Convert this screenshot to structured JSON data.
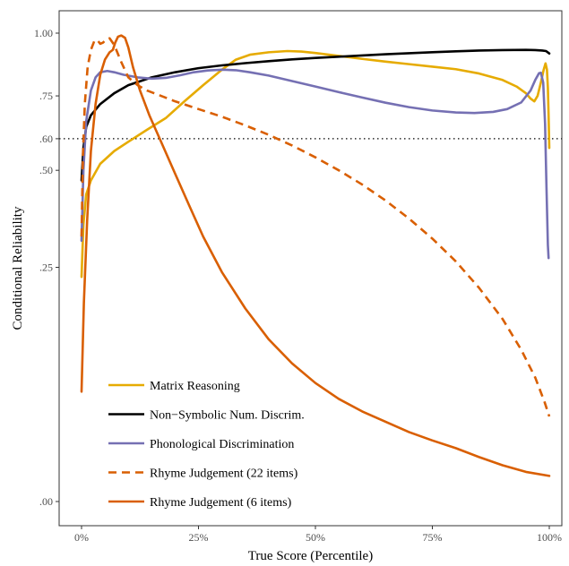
{
  "chart_data": {
    "type": "line",
    "xlabel": "True Score (Percentile)",
    "ylabel": "Conditional Reliability",
    "xlim": [
      0,
      100
    ],
    "ylim": [
      0,
      1
    ],
    "x_ticks": [
      {
        "value": 0,
        "label": "0%"
      },
      {
        "value": 25,
        "label": "25%"
      },
      {
        "value": 50,
        "label": "50%"
      },
      {
        "value": 75,
        "label": "75%"
      },
      {
        "value": 100,
        "label": "100%"
      }
    ],
    "y_ticks": [
      {
        "value": 0,
        "label": ".00"
      },
      {
        "value": 0.25,
        "label": ".25"
      },
      {
        "value": 0.5,
        "label": ".50"
      },
      {
        "value": 0.6,
        "label": ".60"
      },
      {
        "value": 0.75,
        "label": ".75"
      },
      {
        "value": 1.0,
        "label": "1.00"
      }
    ],
    "reference_line": {
      "y": 0.6,
      "style": "dotted"
    },
    "grid": false,
    "legend_position": "bottom-left",
    "series": [
      {
        "name": "Matrix Reasoning",
        "color": "#E6AB02",
        "dash": "solid",
        "points": [
          [
            0,
            0.23
          ],
          [
            0.4,
            0.35
          ],
          [
            1,
            0.43
          ],
          [
            2,
            0.47
          ],
          [
            4,
            0.52
          ],
          [
            7,
            0.56
          ],
          [
            10,
            0.59
          ],
          [
            14,
            0.63
          ],
          [
            18,
            0.67
          ],
          [
            22,
            0.73
          ],
          [
            26,
            0.79
          ],
          [
            30,
            0.85
          ],
          [
            33,
            0.89
          ],
          [
            36,
            0.91
          ],
          [
            40,
            0.92
          ],
          [
            44,
            0.925
          ],
          [
            47,
            0.923
          ],
          [
            50,
            0.917
          ],
          [
            55,
            0.905
          ],
          [
            60,
            0.893
          ],
          [
            65,
            0.882
          ],
          [
            70,
            0.872
          ],
          [
            75,
            0.862
          ],
          [
            80,
            0.852
          ],
          [
            85,
            0.835
          ],
          [
            90,
            0.81
          ],
          [
            93,
            0.785
          ],
          [
            95,
            0.76
          ],
          [
            96,
            0.74
          ],
          [
            96.8,
            0.73
          ],
          [
            97.5,
            0.75
          ],
          [
            98.2,
            0.8
          ],
          [
            98.8,
            0.85
          ],
          [
            99.2,
            0.875
          ],
          [
            99.5,
            0.85
          ],
          [
            99.7,
            0.78
          ],
          [
            99.85,
            0.68
          ],
          [
            100,
            0.57
          ]
        ]
      },
      {
        "name": "Non−Symbolic Num. Discrim.",
        "color": "#000000",
        "dash": "solid",
        "points": [
          [
            0,
            0.47
          ],
          [
            0.4,
            0.57
          ],
          [
            1,
            0.64
          ],
          [
            2,
            0.68
          ],
          [
            4,
            0.72
          ],
          [
            7,
            0.76
          ],
          [
            10,
            0.79
          ],
          [
            15,
            0.82
          ],
          [
            20,
            0.84
          ],
          [
            25,
            0.856
          ],
          [
            30,
            0.867
          ],
          [
            35,
            0.876
          ],
          [
            40,
            0.884
          ],
          [
            45,
            0.891
          ],
          [
            50,
            0.897
          ],
          [
            55,
            0.902
          ],
          [
            60,
            0.907
          ],
          [
            65,
            0.912
          ],
          [
            70,
            0.916
          ],
          [
            75,
            0.92
          ],
          [
            80,
            0.924
          ],
          [
            85,
            0.927
          ],
          [
            90,
            0.929
          ],
          [
            95,
            0.93
          ],
          [
            97,
            0.929
          ],
          [
            98.5,
            0.927
          ],
          [
            99.3,
            0.925
          ],
          [
            100,
            0.915
          ]
        ]
      },
      {
        "name": "Phonological Discrimination",
        "color": "#7570B3",
        "dash": "solid",
        "points": [
          [
            0,
            0.31
          ],
          [
            0.4,
            0.5
          ],
          [
            1,
            0.66
          ],
          [
            2,
            0.77
          ],
          [
            3,
            0.82
          ],
          [
            4,
            0.84
          ],
          [
            5.5,
            0.845
          ],
          [
            7,
            0.84
          ],
          [
            9,
            0.83
          ],
          [
            12,
            0.82
          ],
          [
            15,
            0.815
          ],
          [
            18,
            0.818
          ],
          [
            21,
            0.828
          ],
          [
            24,
            0.84
          ],
          [
            27,
            0.847
          ],
          [
            30,
            0.85
          ],
          [
            33,
            0.848
          ],
          [
            36,
            0.84
          ],
          [
            40,
            0.827
          ],
          [
            45,
            0.806
          ],
          [
            50,
            0.785
          ],
          [
            55,
            0.764
          ],
          [
            60,
            0.744
          ],
          [
            65,
            0.725
          ],
          [
            70,
            0.709
          ],
          [
            75,
            0.697
          ],
          [
            80,
            0.69
          ],
          [
            84,
            0.688
          ],
          [
            88,
            0.692
          ],
          [
            91,
            0.702
          ],
          [
            94,
            0.726
          ],
          [
            96,
            0.77
          ],
          [
            97,
            0.81
          ],
          [
            97.8,
            0.836
          ],
          [
            98.2,
            0.838
          ],
          [
            98.7,
            0.8
          ],
          [
            99.1,
            0.65
          ],
          [
            99.4,
            0.45
          ],
          [
            99.7,
            0.3
          ],
          [
            99.85,
            0.27
          ]
        ]
      },
      {
        "name": "Rhyme Judgement (22 items)",
        "color": "#D95F02",
        "dash": "dashed",
        "points": [
          [
            0,
            0.32
          ],
          [
            0.3,
            0.55
          ],
          [
            0.7,
            0.72
          ],
          [
            1.3,
            0.86
          ],
          [
            2,
            0.93
          ],
          [
            2.7,
            0.965
          ],
          [
            3.3,
            0.972
          ],
          [
            4,
            0.955
          ],
          [
            4.6,
            0.96
          ],
          [
            5.3,
            0.975
          ],
          [
            6,
            0.978
          ],
          [
            7,
            0.95
          ],
          [
            8.5,
            0.88
          ],
          [
            10,
            0.82
          ],
          [
            12,
            0.79
          ],
          [
            14,
            0.77
          ],
          [
            17,
            0.75
          ],
          [
            20,
            0.73
          ],
          [
            25,
            0.702
          ],
          [
            30,
            0.675
          ],
          [
            35,
            0.645
          ],
          [
            40,
            0.613
          ],
          [
            45,
            0.578
          ],
          [
            50,
            0.54
          ],
          [
            55,
            0.5
          ],
          [
            60,
            0.458
          ],
          [
            65,
            0.413
          ],
          [
            70,
            0.365
          ],
          [
            75,
            0.315
          ],
          [
            80,
            0.263
          ],
          [
            85,
            0.208
          ],
          [
            90,
            0.152
          ],
          [
            94,
            0.105
          ],
          [
            97,
            0.07
          ],
          [
            99,
            0.045
          ],
          [
            100,
            0.033
          ]
        ]
      },
      {
        "name": "Rhyme Judgement (6 items)",
        "color": "#D95F02",
        "dash": "solid",
        "points": [
          [
            0,
            0.055
          ],
          [
            0.5,
            0.18
          ],
          [
            1.2,
            0.36
          ],
          [
            2,
            0.56
          ],
          [
            3,
            0.72
          ],
          [
            4,
            0.83
          ],
          [
            5,
            0.89
          ],
          [
            6,
            0.92
          ],
          [
            6.7,
            0.93
          ],
          [
            7.2,
            0.96
          ],
          [
            7.8,
            0.985
          ],
          [
            8.5,
            0.99
          ],
          [
            9.3,
            0.98
          ],
          [
            10,
            0.94
          ],
          [
            11,
            0.86
          ],
          [
            12.5,
            0.77
          ],
          [
            14.5,
            0.68
          ],
          [
            17,
            0.59
          ],
          [
            20,
            0.49
          ],
          [
            23,
            0.4
          ],
          [
            26,
            0.32
          ],
          [
            30,
            0.24
          ],
          [
            35,
            0.17
          ],
          [
            40,
            0.12
          ],
          [
            45,
            0.087
          ],
          [
            50,
            0.064
          ],
          [
            55,
            0.048
          ],
          [
            60,
            0.037
          ],
          [
            65,
            0.029
          ],
          [
            70,
            0.022
          ],
          [
            75,
            0.017
          ],
          [
            80,
            0.013
          ],
          [
            85,
            0.009
          ],
          [
            90,
            0.006
          ],
          [
            95,
            0.004
          ],
          [
            100,
            0.003
          ]
        ]
      }
    ]
  }
}
